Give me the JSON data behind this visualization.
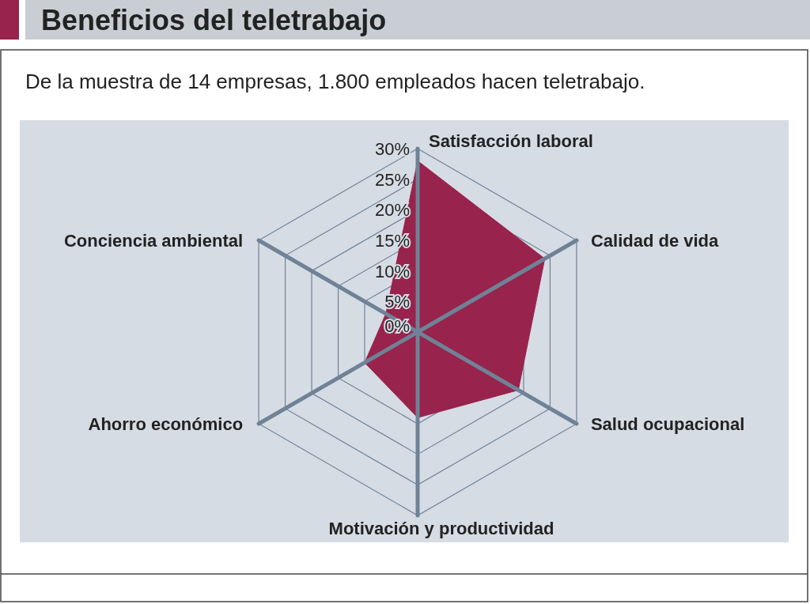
{
  "chart_data": {
    "type": "radar",
    "title": "Beneficios del teletrabajo",
    "subtitle": "De la muestra de 14 empresas, 1.800 empleados hacen teletrabajo.",
    "categories": [
      "Satisfacción laboral",
      "Calidad de vida",
      "Salud ocupacional",
      "Motivación y productividad",
      "Ahorro económico",
      "Conciencia ambiental"
    ],
    "series": [
      {
        "color": "#98234c",
        "values": [
          28,
          24,
          19,
          14,
          10,
          6
        ]
      }
    ],
    "ylim": [
      0,
      30
    ],
    "yticks": [
      {
        "value": 0,
        "label": "0%"
      },
      {
        "value": 5,
        "label": "5%"
      },
      {
        "value": 10,
        "label": "10%"
      },
      {
        "value": 15,
        "label": "15%"
      },
      {
        "value": 20,
        "label": "20%"
      },
      {
        "value": 25,
        "label": "25%"
      },
      {
        "value": 30,
        "label": "30%"
      }
    ],
    "grid": true
  }
}
